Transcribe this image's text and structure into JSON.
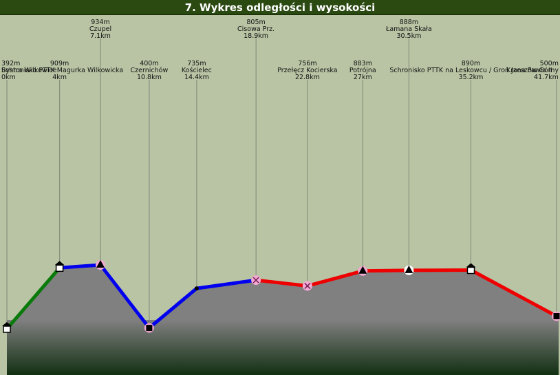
{
  "title": "7. Wykres odległości i wysokości",
  "colors": {
    "background": "#b8c4a4",
    "title_bar": "#2b4a12",
    "profile_fill": "#808080",
    "ground_dark": "#123012",
    "green": "#0a7a0a",
    "blue": "#0000ee",
    "red": "#ee0000",
    "marker_pink": "#f4a8d4"
  },
  "chart_data": {
    "type": "line",
    "title": "7. Wykres odległości i wysokości",
    "xlabel": "",
    "ylabel": "",
    "xlim": [
      0,
      41.7
    ],
    "grid": false,
    "legend": "none",
    "points": [
      {
        "name": "Bystra Wilkowice",
        "elevation": "392m",
        "distance": "0km",
        "x": 0,
        "y": 392,
        "icon": "shelter-icon",
        "label_row": 4
      },
      {
        "name": "Schronisko PTTK Magurka Wilkowicka",
        "elevation": "909m",
        "distance": "4km",
        "x": 4,
        "y": 909,
        "icon": "shelter-icon",
        "label_row": 2
      },
      {
        "name": "Czupel",
        "elevation": "934m",
        "distance": "7.1km",
        "x": 7.1,
        "y": 934,
        "icon": "peak-icon",
        "label_row": 0
      },
      {
        "name": "Czernichów",
        "elevation": "400m",
        "distance": "10.8km",
        "x": 10.8,
        "y": 400,
        "icon": "town-icon",
        "label_row": 4
      },
      {
        "name": "Kościelec",
        "elevation": "735m",
        "distance": "14.4km",
        "x": 14.4,
        "y": 735,
        "icon": "point-icon",
        "label_row": 2
      },
      {
        "name": "Cisowa Prz.",
        "elevation": "805m",
        "distance": "18.9km",
        "x": 18.9,
        "y": 805,
        "icon": "pass-icon",
        "label_row": 0
      },
      {
        "name": "Przełęcz Kocierska",
        "elevation": "756m",
        "distance": "22.8km",
        "x": 22.8,
        "y": 756,
        "icon": "pass-icon",
        "label_row": 4
      },
      {
        "name": "Potrójna",
        "elevation": "883m",
        "distance": "27km",
        "x": 27,
        "y": 883,
        "icon": "peak-icon",
        "label_row": 2
      },
      {
        "name": "Łamana Skała",
        "elevation": "888m",
        "distance": "30.5km",
        "x": 30.5,
        "y": 888,
        "icon": "peak-icon",
        "label_row": 0
      },
      {
        "name": "Schronisko PTTK na Leskowcu / Groń Jana Pawła II",
        "elevation": "890m",
        "distance": "35.2km",
        "x": 35.2,
        "y": 890,
        "icon": "shelter-icon",
        "label_row": 4
      },
      {
        "name": "Krzeszów Górny",
        "elevation": "500m",
        "distance": "41.7km",
        "x": 41.7,
        "y": 500,
        "icon": "town-icon",
        "label_row": 2
      }
    ],
    "segments": [
      {
        "from": 0,
        "to": 1,
        "color": "#0a7a0a"
      },
      {
        "from": 1,
        "to": 5,
        "color": "#0000ee"
      },
      {
        "from": 5,
        "to": 10,
        "color": "#ee0000"
      }
    ]
  }
}
